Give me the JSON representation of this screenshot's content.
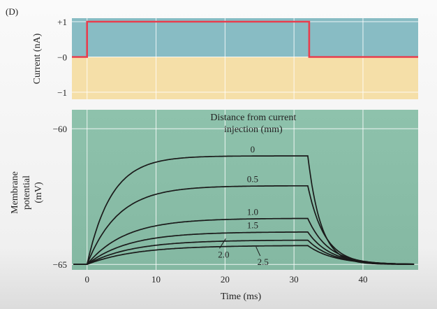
{
  "panel_label": "(D)",
  "chart_data": [
    {
      "type": "line",
      "ylabel": "Current (nA)",
      "yticks": [
        "+1",
        "−0",
        "−1"
      ],
      "ytick_values": [
        1,
        0,
        -1
      ],
      "ylim": [
        -1.2,
        1.1
      ],
      "xlim": [
        -2.2,
        48
      ],
      "background": {
        "positive": "#88bcc4",
        "negative": "#f5dfa8"
      },
      "grid": true,
      "series": [
        {
          "color": "#e83e4e",
          "points": [
            [
              -2.2,
              0
            ],
            [
              0,
              0
            ],
            [
              0,
              1
            ],
            [
              32.2,
              1
            ],
            [
              32.2,
              0
            ],
            [
              48,
              0
            ]
          ]
        }
      ]
    },
    {
      "type": "line",
      "title": "Distance from current injection (mm)",
      "title_lines": [
        "Distance from current",
        "injection (mm)"
      ],
      "ylabel_lines": [
        "Membrane",
        "potential",
        "(mV)"
      ],
      "xlabel": "Time (ms)",
      "xticks": [
        0,
        10,
        20,
        30,
        40
      ],
      "yticks": [
        "−60",
        "−65"
      ],
      "ytick_values": [
        -60,
        -65
      ],
      "xlim": [
        -2.2,
        48
      ],
      "ylim": [
        -65.2,
        -59.3
      ],
      "grid": true,
      "background": "#8cbfa8",
      "stim_on": 0,
      "stim_off": 32,
      "rest_mV": -65,
      "series": [
        {
          "name": "0",
          "plateau": -61.0,
          "tau": 3.5
        },
        {
          "name": "0.5",
          "plateau": -62.1,
          "tau": 4.5
        },
        {
          "name": "1.0",
          "plateau": -63.3,
          "tau": 5.5
        },
        {
          "name": "1.5",
          "plateau": -63.8,
          "tau": 6.0
        },
        {
          "name": "2.0",
          "plateau": -64.1,
          "tau": 6.5
        },
        {
          "name": "2.5",
          "plateau": -64.3,
          "tau": 7.0
        }
      ]
    }
  ]
}
